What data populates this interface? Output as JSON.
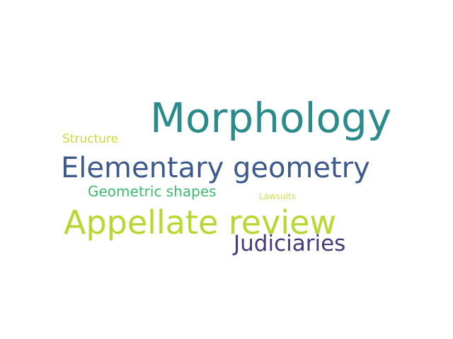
{
  "word_cloud": {
    "words": [
      {
        "text": "Morphology",
        "color": "#2a8a8c"
      },
      {
        "text": "Elementary geometry",
        "color": "#3d5a8e"
      },
      {
        "text": "Appellate review",
        "color": "#b5d930"
      },
      {
        "text": "Judiciaries",
        "color": "#453a80"
      },
      {
        "text": "Geometric shapes",
        "color": "#3db96f"
      },
      {
        "text": "Structure",
        "color": "#c8da3a"
      },
      {
        "text": "Lawsuits",
        "color": "#cde053"
      }
    ]
  }
}
